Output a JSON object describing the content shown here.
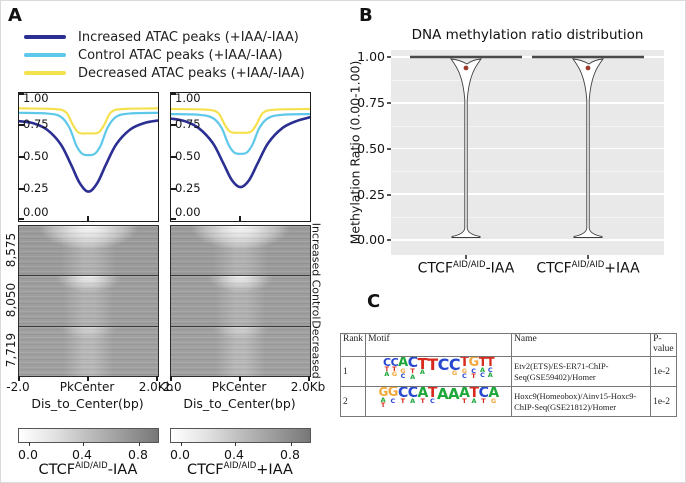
{
  "figure": {
    "panel_a": {
      "label": "A",
      "legend": [
        {
          "label": "Increased ATAC peaks (+IAA/-IAA)",
          "color": "#2b2f92"
        },
        {
          "label": "Control ATAC peaks (+IAA/-IAA)",
          "color": "#5ec8ea"
        },
        {
          "label": "Decreased ATAC peaks (+IAA/-IAA)",
          "color": "#f5e04e"
        }
      ],
      "profile_yticks": [
        "1.00",
        "0.75",
        "0.50",
        "0.25",
        "0.00"
      ],
      "xaxis": {
        "ticks": [
          "-2.0",
          "PkCenter",
          "2.0Kb"
        ],
        "label": "Dis_to_Center(bp)"
      },
      "heatmap_groups": [
        {
          "count": "8,575",
          "name": "Increased"
        },
        {
          "count": "8,050",
          "name": "Control"
        },
        {
          "count": "7,719",
          "name": "Decreased"
        }
      ],
      "colorbar_ticks": [
        "0.0",
        "0.4",
        "0.8"
      ],
      "conditions": [
        {
          "base": "CTCF",
          "sup": "AID/AID",
          "suffix": "-IAA"
        },
        {
          "base": "CTCF",
          "sup": "AID/AID",
          "suffix": "+IAA"
        }
      ]
    },
    "panel_b": {
      "label": "B",
      "title": "DNA methylation ratio distribution",
      "ylabel": "Methylation Ratio (0.00-1.00)",
      "yticks": [
        "1.00",
        "0.75",
        "0.50",
        "0.25",
        "0.00"
      ],
      "categories": [
        {
          "base": "CTCF",
          "sup": "AID/AID",
          "suffix": "-IAA"
        },
        {
          "base": "CTCF",
          "sup": "AID/AID",
          "suffix": "+IAA"
        }
      ],
      "marker_color": "#9c3a2c"
    },
    "panel_c": {
      "label": "C",
      "headers": [
        "Rank",
        "Motif",
        "Name",
        "P-value"
      ],
      "base_colors": {
        "A": "#1fa83a",
        "C": "#2747cf",
        "G": "#f3a73a",
        "T": "#d8291d"
      },
      "rows": [
        {
          "rank": "1",
          "consensus": "CCACTTCCTGTT",
          "name": "Etv2(ETS)/ES-ER71-ChIP-Seq(GSE59402)/Homer",
          "pvalue": "1e-2",
          "logo": [
            {
              "m": "C",
              "s": 11,
              "sub": [
                "T",
                "A"
              ]
            },
            {
              "m": "C",
              "s": 11,
              "sub": [
                "T",
                "G"
              ]
            },
            {
              "m": "A",
              "s": 13,
              "sub": [
                "G",
                "C"
              ]
            },
            {
              "m": "C",
              "s": 14,
              "sub": [
                "T",
                "A"
              ]
            },
            {
              "m": "T",
              "s": 15,
              "sub": [
                "A"
              ]
            },
            {
              "m": "T",
              "s": 16,
              "sub": []
            },
            {
              "m": "C",
              "s": 16,
              "sub": []
            },
            {
              "m": "C",
              "s": 16,
              "sub": [
                "G"
              ]
            },
            {
              "m": "T",
              "s": 13,
              "sub": [
                "G",
                "C"
              ]
            },
            {
              "m": "G",
              "s": 13,
              "sub": [
                "C",
                "T"
              ]
            },
            {
              "m": "T",
              "s": 12,
              "sub": [
                "A",
                "C"
              ]
            },
            {
              "m": "T",
              "s": 12,
              "sub": [
                "C",
                "A"
              ]
            }
          ]
        },
        {
          "rank": "2",
          "consensus": "GGCCATAAATCA",
          "name": "Hoxc9(Homeobox)/Ainv15-Hoxc9-ChIP-Seq(GSE21812)/Homer",
          "pvalue": "1e-2",
          "logo": [
            {
              "m": "G",
              "s": 12,
              "sub": [
                "A",
                "T"
              ]
            },
            {
              "m": "G",
              "s": 13,
              "sub": [
                "C"
              ]
            },
            {
              "m": "C",
              "s": 14,
              "sub": [
                "T"
              ]
            },
            {
              "m": "C",
              "s": 14,
              "sub": [
                "A"
              ]
            },
            {
              "m": "A",
              "s": 14,
              "sub": [
                "T"
              ]
            },
            {
              "m": "T",
              "s": 14,
              "sub": [
                "C"
              ]
            },
            {
              "m": "A",
              "s": 15,
              "sub": []
            },
            {
              "m": "A",
              "s": 15,
              "sub": []
            },
            {
              "m": "A",
              "s": 14,
              "sub": [
                "T"
              ]
            },
            {
              "m": "T",
              "s": 14,
              "sub": [
                "A"
              ]
            },
            {
              "m": "C",
              "s": 14,
              "sub": [
                "T"
              ]
            },
            {
              "m": "A",
              "s": 14,
              "sub": [
                "G"
              ]
            }
          ]
        }
      ]
    }
  },
  "chart_data": [
    {
      "type": "line",
      "id": "atac_profile_CTCF_AID_AID_minus_IAA",
      "title": "CTCF(AID/AID) -IAA",
      "xlabel": "Dis_to_Center(bp)",
      "x_ticks": [
        "-2.0",
        "PkCenter",
        "2.0Kb"
      ],
      "xlim": [
        -2,
        2
      ],
      "ylim": [
        0,
        1
      ],
      "yticks": [
        1.0,
        0.75,
        0.5,
        0.25,
        0.0
      ],
      "series": [
        {
          "name": "Increased ATAC peaks (+IAA/-IAA)",
          "color": "#2b2f92",
          "width": 2.6,
          "points": [
            [
              -2,
              0.78
            ],
            [
              -1.6,
              0.765
            ],
            [
              -1.2,
              0.715
            ],
            [
              -0.8,
              0.6
            ],
            [
              -0.5,
              0.44
            ],
            [
              -0.25,
              0.295
            ],
            [
              0,
              0.23
            ],
            [
              0.25,
              0.295
            ],
            [
              0.5,
              0.44
            ],
            [
              0.8,
              0.6
            ],
            [
              1.2,
              0.715
            ],
            [
              1.6,
              0.765
            ],
            [
              2,
              0.785
            ]
          ]
        },
        {
          "name": "Control ATAC peaks (+IAA/-IAA)",
          "color": "#5ec8ea",
          "width": 2.2,
          "points": [
            [
              -2,
              0.845
            ],
            [
              -1.2,
              0.84
            ],
            [
              -0.8,
              0.815
            ],
            [
              -0.55,
              0.73
            ],
            [
              -0.35,
              0.59
            ],
            [
              -0.18,
              0.525
            ],
            [
              0,
              0.515
            ],
            [
              0.18,
              0.525
            ],
            [
              0.35,
              0.59
            ],
            [
              0.55,
              0.73
            ],
            [
              0.8,
              0.815
            ],
            [
              1.2,
              0.84
            ],
            [
              2,
              0.845
            ]
          ]
        },
        {
          "name": "Decreased ATAC peaks (+IAA/-IAA)",
          "color": "#f5e04e",
          "width": 2.2,
          "points": [
            [
              -2,
              0.88
            ],
            [
              -1,
              0.875
            ],
            [
              -0.65,
              0.85
            ],
            [
              -0.45,
              0.75
            ],
            [
              -0.28,
              0.69
            ],
            [
              0,
              0.685
            ],
            [
              0.28,
              0.69
            ],
            [
              0.45,
              0.75
            ],
            [
              0.65,
              0.85
            ],
            [
              1,
              0.875
            ],
            [
              2,
              0.88
            ]
          ]
        }
      ]
    },
    {
      "type": "line",
      "id": "atac_profile_CTCF_AID_AID_plus_IAA",
      "title": "CTCF(AID/AID) +IAA",
      "xlabel": "Dis_to_Center(bp)",
      "x_ticks": [
        "-2.0",
        "PkCenter",
        "2.0Kb"
      ],
      "xlim": [
        -2,
        2
      ],
      "ylim": [
        0,
        1
      ],
      "yticks": [
        1.0,
        0.75,
        0.5,
        0.25,
        0.0
      ],
      "series": [
        {
          "name": "Increased ATAC peaks (+IAA/-IAA)",
          "color": "#2b2f92",
          "width": 2.6,
          "points": [
            [
              -2,
              0.8
            ],
            [
              -1.6,
              0.78
            ],
            [
              -1.2,
              0.725
            ],
            [
              -0.8,
              0.61
            ],
            [
              -0.5,
              0.455
            ],
            [
              -0.25,
              0.32
            ],
            [
              0,
              0.265
            ],
            [
              0.25,
              0.32
            ],
            [
              0.5,
              0.455
            ],
            [
              0.8,
              0.61
            ],
            [
              1.2,
              0.725
            ],
            [
              1.6,
              0.78
            ],
            [
              2,
              0.81
            ]
          ]
        },
        {
          "name": "Control ATAC peaks (+IAA/-IAA)",
          "color": "#5ec8ea",
          "width": 2.2,
          "points": [
            [
              -2,
              0.835
            ],
            [
              -1.2,
              0.83
            ],
            [
              -0.8,
              0.805
            ],
            [
              -0.55,
              0.73
            ],
            [
              -0.35,
              0.6
            ],
            [
              -0.18,
              0.535
            ],
            [
              0,
              0.525
            ],
            [
              0.18,
              0.535
            ],
            [
              0.35,
              0.6
            ],
            [
              0.55,
              0.73
            ],
            [
              0.8,
              0.805
            ],
            [
              1.2,
              0.83
            ],
            [
              2,
              0.835
            ]
          ]
        },
        {
          "name": "Decreased ATAC peaks (+IAA/-IAA)",
          "color": "#f5e04e",
          "width": 2.2,
          "points": [
            [
              -2,
              0.875
            ],
            [
              -1,
              0.87
            ],
            [
              -0.65,
              0.845
            ],
            [
              -0.45,
              0.75
            ],
            [
              -0.28,
              0.695
            ],
            [
              0,
              0.69
            ],
            [
              0.28,
              0.695
            ],
            [
              0.45,
              0.75
            ],
            [
              0.65,
              0.845
            ],
            [
              1,
              0.87
            ],
            [
              2,
              0.875
            ]
          ]
        }
      ]
    },
    {
      "type": "heatmap",
      "id": "atac_signal_heatmaps",
      "description": "ATAC signal around peak centers, -2.0Kb to 2.0Kb, lighter = higher signal at center",
      "x_ticks": [
        "-2.0",
        "PkCenter",
        "2.0Kb"
      ],
      "groups": [
        {
          "name": "Increased",
          "rows": 8575
        },
        {
          "name": "Control",
          "rows": 8050
        },
        {
          "name": "Decreased",
          "rows": 7719
        }
      ],
      "colorbar_ticks": [
        0.0,
        0.4,
        0.8
      ],
      "conditions": [
        "CTCF(AID/AID) -IAA",
        "CTCF(AID/AID) +IAA"
      ]
    },
    {
      "type": "violin",
      "id": "dna_methylation_ratio_distribution",
      "title": "DNA methylation ratio distribution",
      "ylabel": "Methylation Ratio (0.00-1.00)",
      "ylim": [
        0,
        1
      ],
      "yticks": [
        1.0,
        0.75,
        0.5,
        0.25,
        0.0
      ],
      "categories": [
        "CTCF(AID/AID) -IAA",
        "CTCF(AID/AID) +IAA"
      ],
      "groups": [
        {
          "category": "CTCF(AID/AID) -IAA",
          "median": 1.0,
          "mean": 0.94,
          "min": 0.0,
          "max": 1.0
        },
        {
          "category": "CTCF(AID/AID) +IAA",
          "median": 1.0,
          "mean": 0.94,
          "min": 0.0,
          "max": 1.0
        }
      ]
    }
  ]
}
